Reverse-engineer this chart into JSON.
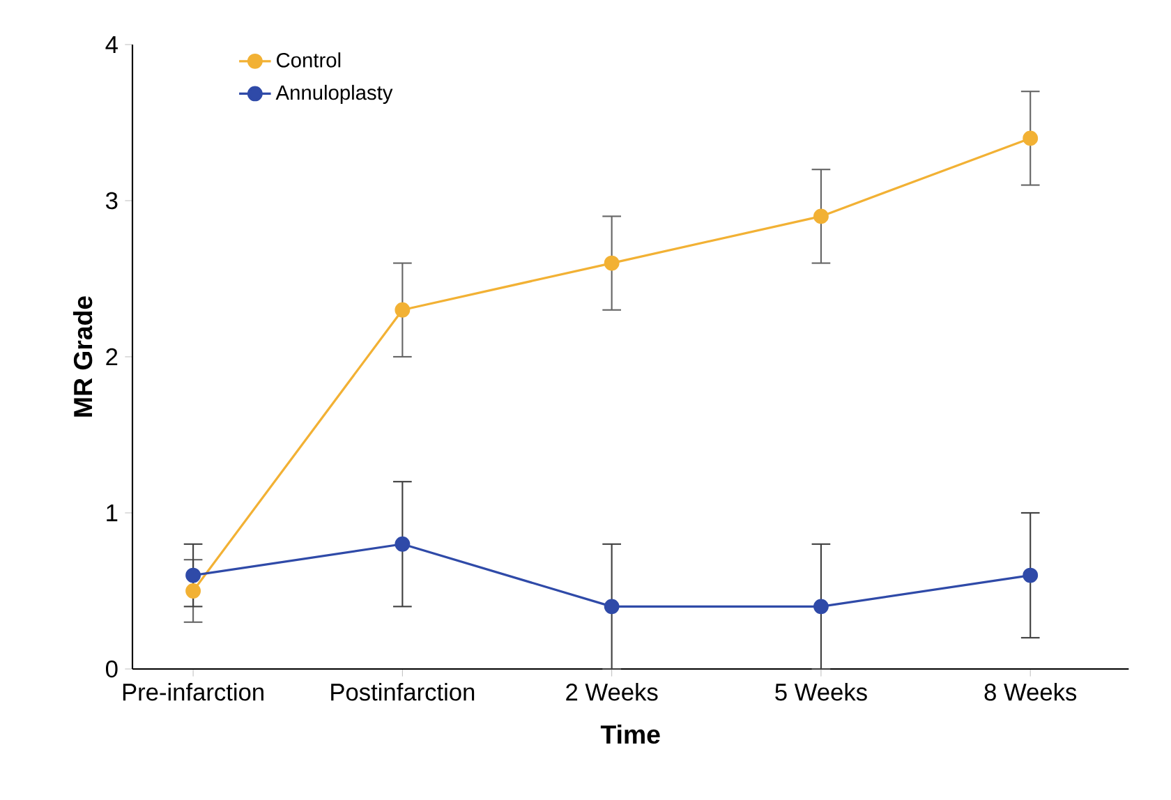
{
  "chart_data": {
    "type": "line",
    "xlabel": "Time",
    "ylabel": "MR Grade",
    "categories": [
      "Pre-infarction",
      "Postinfarction",
      "2 Weeks",
      "5 Weeks",
      "8 Weeks"
    ],
    "series": [
      {
        "name": "Control",
        "color": "#f2b134",
        "values": [
          0.5,
          2.3,
          2.6,
          2.9,
          3.4
        ],
        "errors": [
          0.2,
          0.3,
          0.3,
          0.3,
          0.3
        ]
      },
      {
        "name": "Annuloplasty",
        "color": "#2f4aa8",
        "values": [
          0.6,
          0.8,
          0.4,
          0.4,
          0.6
        ],
        "errors": [
          0.2,
          0.4,
          0.4,
          0.4,
          0.4
        ]
      }
    ],
    "ylim": [
      0,
      4
    ],
    "yticks": [
      0,
      1,
      2,
      3,
      4
    ],
    "grid": false,
    "legend": "top left",
    "marker": "circle",
    "line_style": "solid"
  }
}
